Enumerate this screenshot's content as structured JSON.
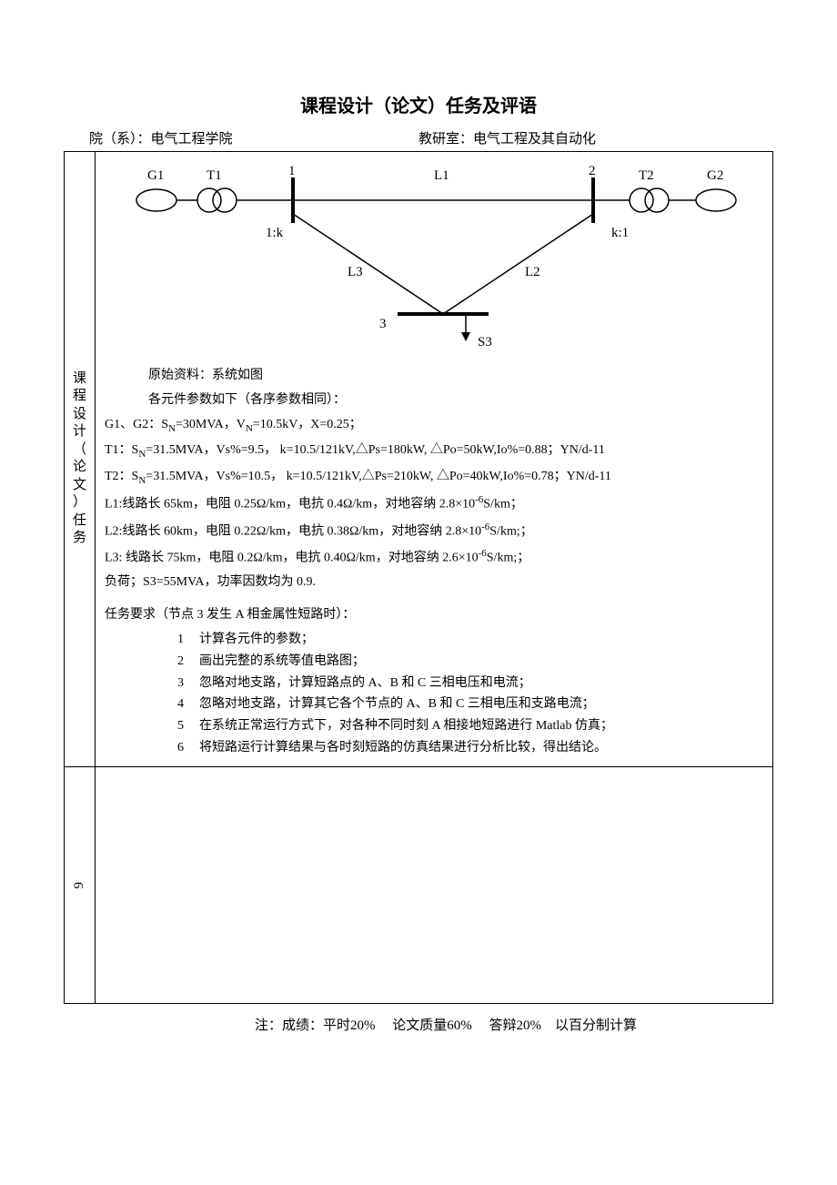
{
  "title": "课程设计（论文）任务及评语",
  "header": {
    "dept_label": "院（系）：",
    "dept_value": "电气工程学院",
    "office_label": "教研室：",
    "office_value": "电气工程及其自动化"
  },
  "side_labels": {
    "row1": "课程设计（论文）任务",
    "row2": "9"
  },
  "diagram": {
    "labels": {
      "G1": "G1",
      "T1": "T1",
      "n1": "1",
      "L1": "L1",
      "n2": "2",
      "T2": "T2",
      "G2": "G2",
      "r1": "1:k",
      "r2": "k:1",
      "L3": "L3",
      "L2": "L2",
      "n3": "3",
      "S3": "S3"
    },
    "colors": {
      "line": "#000000",
      "bg": "#ffffff"
    }
  },
  "body": {
    "material_label": "原始资料：系统如图",
    "params_label": "各元件参数如下（各序参数相同）：",
    "p1": "G1、G2：S<sub>N</sub>=30MVA，V<sub>N</sub>=10.5kV，X=0.25；",
    "p2": "T1：S<sub>N</sub>=31.5MVA，Vs%=9.5， k=10.5/121kV,△Ps=180kW, △Po=50kW,Io%=0.88；YN/d-11",
    "p3": "T2：S<sub>N</sub>=31.5MVA，Vs%=10.5， k=10.5/121kV,△Ps=210kW, △Po=40kW,Io%=0.78；YN/d-11",
    "p4": "L1:线路长 65km，电阻 0.25Ω/km，电抗 0.4Ω/km，对地容纳 2.8×10<sup>-6</sup>S/km；",
    "p5": "L2:线路长 60km，电阻 0.22Ω/km，电抗 0.38Ω/km，对地容纳 2.8×10<sup>-6</sup>S/km;；",
    "p6": "L3: 线路长 75km，电阻 0.2Ω/km，电抗 0.40Ω/km，对地容纳 2.6×10<sup>-6</sup>S/km;；",
    "p7": "负荷；S3=55MVA，功率因数均为 0.9.",
    "tasks_label": "任务要求（节点 3 发生 A 相金属性短路时）：",
    "tasks": [
      "计算各元件的参数；",
      "画出完整的系统等值电路图；",
      "忽略对地支路，计算短路点的 A、B 和 C 三相电压和电流；",
      "忽略对地支路，计算其它各个节点的 A、B 和 C 三相电压和支路电流；",
      "在系统正常运行方式下，对各种不同时刻 A 相接地短路进行 Matlab 仿真；",
      "将短路运行计算结果与各时刻短路的仿真结果进行分析比较，得出结论。"
    ]
  },
  "footnote": "注：成绩：平时20%　 论文质量60%　 答辩20%　以百分制计算"
}
